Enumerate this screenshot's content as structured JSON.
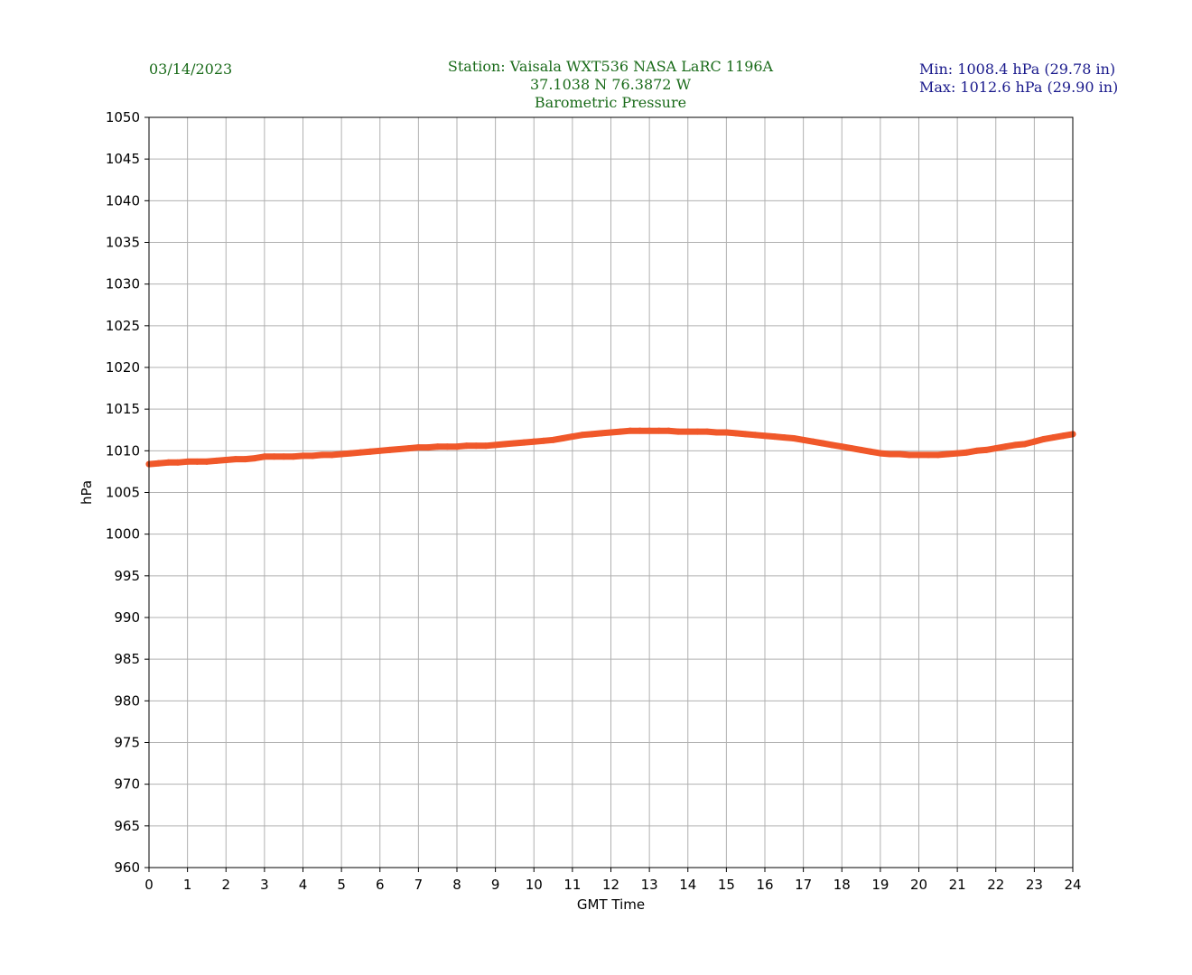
{
  "header": {
    "date": "03/14/2023",
    "station_line": "Station:  Vaisala WXT536  NASA LaRC 1196A",
    "coords_line": "37.1038 N 76.3872 W",
    "title_line": "Barometric Pressure",
    "min_line": "Min: 1008.4 hPa (29.78 in)",
    "max_line": "Max: 1012.6 hPa (29.90 in)"
  },
  "colors": {
    "header_text": "#1a6b1a",
    "minmax_text": "#1a1a8c",
    "series": "#f0582a",
    "grid": "#b0b0b0"
  },
  "chart_data": {
    "type": "scatter",
    "title": "Barometric Pressure",
    "xlabel": "GMT Time",
    "ylabel": "hPa",
    "xlim": [
      0,
      24
    ],
    "ylim": [
      960,
      1050
    ],
    "xticks": [
      0,
      1,
      2,
      3,
      4,
      5,
      6,
      7,
      8,
      9,
      10,
      11,
      12,
      13,
      14,
      15,
      16,
      17,
      18,
      19,
      20,
      21,
      22,
      23,
      24
    ],
    "yticks": [
      960,
      965,
      970,
      975,
      980,
      985,
      990,
      995,
      1000,
      1005,
      1010,
      1015,
      1020,
      1025,
      1030,
      1035,
      1040,
      1045,
      1050
    ],
    "grid": true,
    "series": [
      {
        "x": [
          0,
          0.25,
          0.5,
          0.75,
          1,
          1.25,
          1.5,
          1.75,
          2,
          2.25,
          2.5,
          2.75,
          3,
          3.25,
          3.5,
          3.75,
          4,
          4.25,
          4.5,
          4.75,
          5,
          5.25,
          5.5,
          5.75,
          6,
          6.25,
          6.5,
          6.75,
          7,
          7.25,
          7.5,
          7.75,
          8,
          8.25,
          8.5,
          8.75,
          9,
          9.25,
          9.5,
          9.75,
          10,
          10.25,
          10.5,
          10.75,
          11,
          11.25,
          11.5,
          11.75,
          12,
          12.25,
          12.5,
          12.75,
          13,
          13.25,
          13.5,
          13.75,
          14,
          14.25,
          14.5,
          14.75,
          15,
          15.25,
          15.5,
          15.75,
          16,
          16.25,
          16.5,
          16.75,
          17,
          17.25,
          17.5,
          17.75,
          18,
          18.25,
          18.5,
          18.75,
          19,
          19.25,
          19.5,
          19.75,
          20,
          20.25,
          20.5,
          20.75,
          21,
          21.25,
          21.5,
          21.75,
          22,
          22.25,
          22.5,
          22.75,
          23,
          23.25,
          23.5,
          23.75,
          24
        ],
        "y": [
          1008.4,
          1008.5,
          1008.6,
          1008.6,
          1008.7,
          1008.7,
          1008.7,
          1008.8,
          1008.9,
          1009.0,
          1009.0,
          1009.1,
          1009.3,
          1009.3,
          1009.3,
          1009.3,
          1009.4,
          1009.4,
          1009.5,
          1009.5,
          1009.6,
          1009.7,
          1009.8,
          1009.9,
          1010.0,
          1010.1,
          1010.2,
          1010.3,
          1010.4,
          1010.4,
          1010.5,
          1010.5,
          1010.5,
          1010.6,
          1010.6,
          1010.6,
          1010.7,
          1010.8,
          1010.9,
          1011.0,
          1011.1,
          1011.2,
          1011.3,
          1011.5,
          1011.7,
          1011.9,
          1012.0,
          1012.1,
          1012.2,
          1012.3,
          1012.4,
          1012.4,
          1012.4,
          1012.4,
          1012.4,
          1012.3,
          1012.3,
          1012.3,
          1012.3,
          1012.2,
          1012.2,
          1012.1,
          1012.0,
          1011.9,
          1011.8,
          1011.7,
          1011.6,
          1011.5,
          1011.3,
          1011.1,
          1010.9,
          1010.7,
          1010.5,
          1010.3,
          1010.1,
          1009.9,
          1009.7,
          1009.6,
          1009.6,
          1009.5,
          1009.5,
          1009.5,
          1009.5,
          1009.6,
          1009.7,
          1009.8,
          1010.0,
          1010.1,
          1010.3,
          1010.5,
          1010.7,
          1010.8,
          1011.1,
          1011.4,
          1011.6,
          1011.8,
          1012.0
        ]
      }
    ]
  }
}
